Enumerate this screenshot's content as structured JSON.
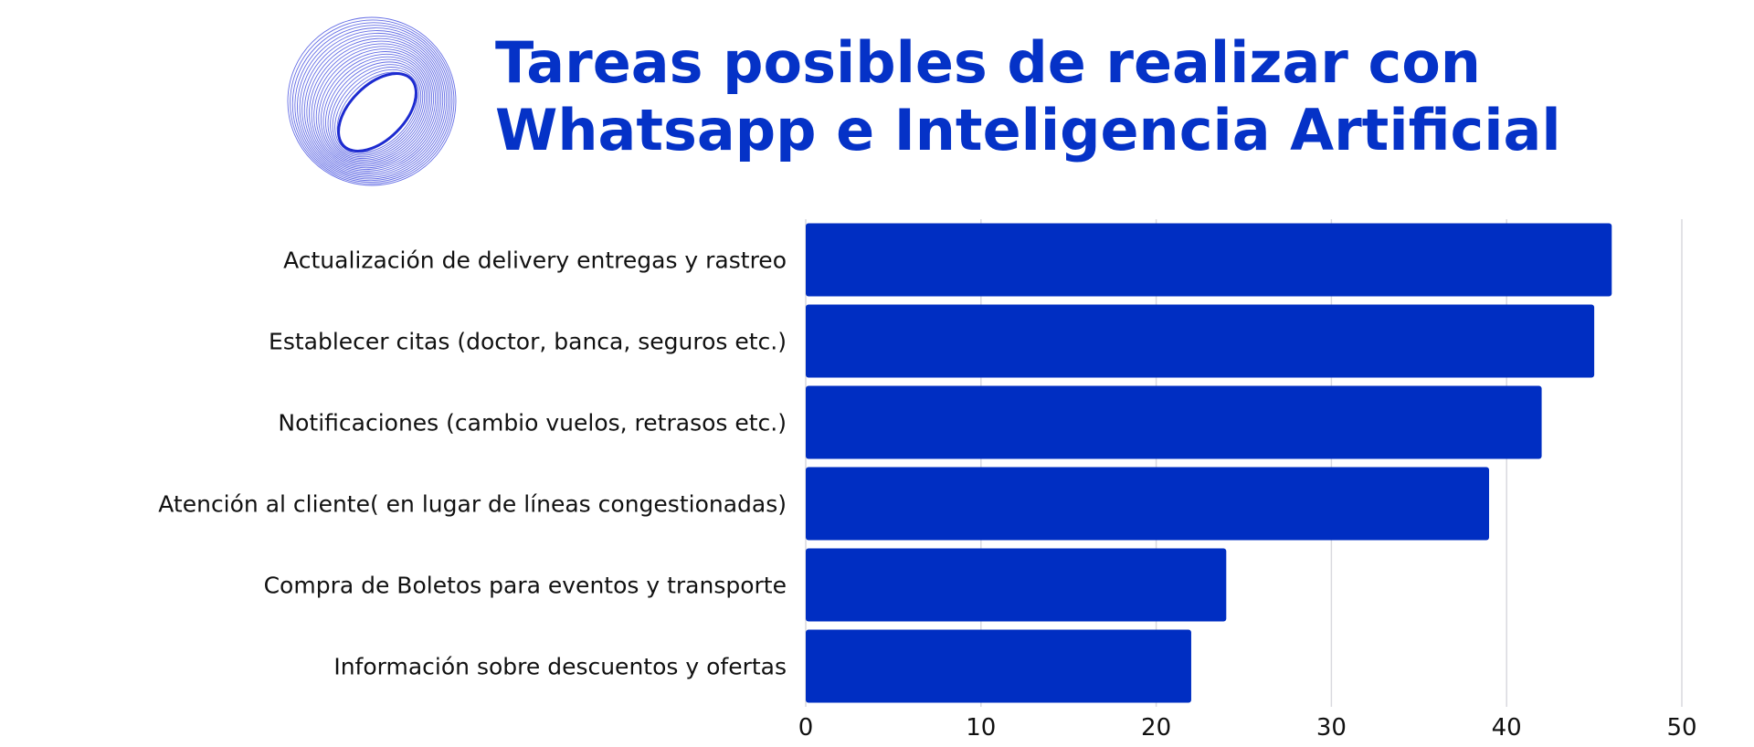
{
  "colors": {
    "bar": "#002ec2",
    "title": "#0532c7",
    "logo_stroke": "#4a55e0",
    "grid": "#d9d9de",
    "text": "#111111"
  },
  "logo": {
    "icon": "ring-swirl-icon"
  },
  "chart_data": {
    "type": "bar",
    "orientation": "horizontal",
    "title_lines": [
      "Tareas posibles de realizar con",
      "Whatsapp e Inteligencia Artificial"
    ],
    "categories": [
      "Actualización de delivery entregas y rastreo",
      "Establecer citas (doctor, banca, seguros etc.)",
      "Notificaciones (cambio vuelos, retrasos etc.)",
      "Atención al cliente( en lugar de líneas congestionadas)",
      "Compra de Boletos para eventos y transporte",
      "Información sobre descuentos y ofertas"
    ],
    "values": [
      46,
      45,
      42,
      39,
      24,
      22
    ],
    "xlim": [
      0,
      50
    ],
    "xticks": [
      "0",
      "10",
      "20",
      "30",
      "40",
      "50"
    ],
    "grid": "vertical",
    "legend": "none"
  }
}
